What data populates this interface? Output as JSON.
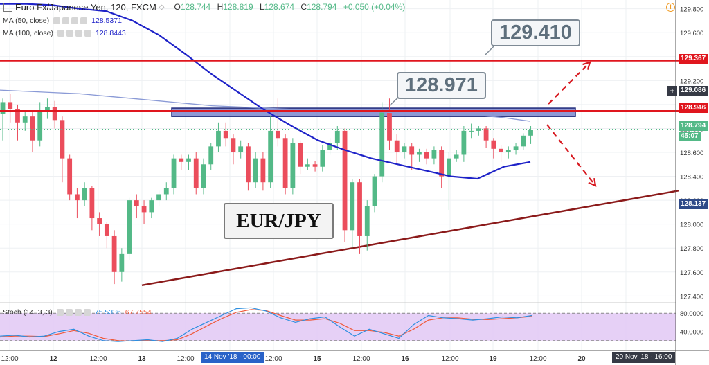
{
  "header": {
    "symbol": "Euro Fx/Japanese Yen, 120, FXCM",
    "open_label": "O",
    "open": "128.744",
    "high_label": "H",
    "high": "128.819",
    "low_label": "L",
    "low": "128.674",
    "close_label": "C",
    "close": "128.794",
    "change": "+0.050 (+0.04%)"
  },
  "indicators": {
    "ma50_label": "MA (50, close)",
    "ma50_value": "128.5371",
    "ma100_label": "MA (100, close)",
    "ma100_value": "128.8443",
    "stoch_label": "Stoch (14, 3, 3)",
    "stoch_k": "75.5336",
    "stoch_d": "67.7554"
  },
  "annotations": {
    "callout_high": "129.410",
    "callout_mid": "128.971",
    "pair": "EUR/JPY"
  },
  "price_axis": {
    "ticks": [
      "129.800",
      "129.600",
      "129.400",
      "129.200",
      "129.000",
      "128.800",
      "128.600",
      "128.400",
      "128.200",
      "128.000",
      "127.800",
      "127.600",
      "127.400"
    ],
    "tag_resist_high": "129.367",
    "tag_crosshair": "129.086",
    "tag_resist_mid": "128.946",
    "tag_last": "128.794",
    "tag_countdown": "45:07",
    "tag_trend": "128.137"
  },
  "stoch_axis": {
    "ticks": [
      "80.0000",
      "40.0000"
    ]
  },
  "time_axis": {
    "ticks": [
      "12:00",
      "12",
      "12:00",
      "13",
      "12:00",
      "12:00",
      "15",
      "12:00",
      "16",
      "12:00",
      "19",
      "12:00",
      "20"
    ],
    "tag_crosshair": "14 Nov '18 · 00:00",
    "tag_right": "20 Nov '18 · 16:00"
  },
  "colors": {
    "bull": "#53b987",
    "bear": "#eb4d5c",
    "ma50": "#1e22c8",
    "ma100": "#8a9ad6",
    "resistance": "#e0161e",
    "trendline": "#8b1a1a",
    "zone_fill": "#6a77c6",
    "stoch_k": "#2e8fe0",
    "stoch_d": "#ef5a3c",
    "stoch_band": "#e2c8f5"
  },
  "icons": [
    "collapse-icon",
    "alert-icon",
    "settings-icon",
    "close-icon",
    "eye-icon",
    "more-icon",
    "crosshair-plus-icon"
  ],
  "chart_data": {
    "type": "candlestick",
    "ylim": [
      127.35,
      129.85
    ],
    "resistance_levels": [
      129.367,
      128.946
    ],
    "supply_zone": [
      128.9,
      128.97
    ],
    "trendline": {
      "from": 127.49,
      "to": 128.28
    },
    "candles": [
      [
        128.92,
        129.02,
        128.78,
        129.05,
        128.7
      ],
      [
        129.02,
        128.96,
        128.9,
        129.09,
        128.85
      ],
      [
        128.96,
        128.85,
        128.8,
        129.0,
        128.7
      ],
      [
        128.85,
        128.9,
        128.82,
        128.95,
        128.78
      ],
      [
        128.9,
        128.7,
        128.66,
        128.95,
        128.6
      ],
      [
        128.7,
        128.95,
        128.66,
        129.02,
        128.65
      ],
      [
        128.95,
        128.98,
        128.9,
        129.05,
        128.88
      ],
      [
        128.98,
        128.87,
        128.82,
        129.03,
        128.8
      ],
      [
        128.87,
        128.55,
        128.4,
        128.9,
        128.35
      ],
      [
        128.55,
        128.25,
        128.23,
        128.58,
        128.2
      ],
      [
        128.25,
        128.2,
        128.1,
        128.3,
        128.05
      ],
      [
        128.2,
        128.3,
        128.18,
        128.35,
        128.15
      ],
      [
        128.3,
        128.05,
        128.0,
        128.32,
        127.95
      ],
      [
        128.05,
        128.0,
        127.97,
        128.1,
        127.9
      ],
      [
        128.0,
        127.9,
        127.85,
        128.02,
        127.8
      ],
      [
        127.9,
        127.6,
        127.55,
        127.95,
        127.5
      ],
      [
        127.6,
        127.75,
        127.58,
        127.8,
        127.52
      ],
      [
        127.75,
        128.2,
        127.72,
        128.22,
        127.7
      ],
      [
        128.2,
        128.15,
        128.08,
        128.25,
        128.05
      ],
      [
        128.15,
        128.1,
        128.08,
        128.2,
        128.0
      ],
      [
        128.1,
        128.2,
        128.08,
        128.22,
        128.05
      ],
      [
        128.2,
        128.25,
        128.18,
        128.28,
        128.15
      ],
      [
        128.25,
        128.3,
        128.22,
        128.35,
        128.2
      ],
      [
        128.3,
        128.55,
        128.28,
        128.58,
        128.25
      ],
      [
        128.55,
        128.52,
        128.48,
        128.58,
        128.45
      ],
      [
        128.52,
        128.55,
        128.48,
        128.58,
        128.45
      ],
      [
        128.55,
        128.3,
        128.28,
        128.6,
        128.25
      ],
      [
        128.3,
        128.5,
        128.28,
        128.55,
        128.25
      ],
      [
        128.5,
        128.65,
        128.48,
        128.68,
        128.45
      ],
      [
        128.65,
        128.78,
        128.62,
        128.85,
        128.6
      ],
      [
        128.78,
        128.72,
        128.68,
        128.85,
        128.65
      ],
      [
        128.72,
        128.6,
        128.52,
        128.75,
        128.5
      ],
      [
        128.6,
        128.65,
        128.58,
        128.7,
        128.55
      ],
      [
        128.65,
        128.35,
        128.3,
        128.68,
        128.28
      ],
      [
        128.35,
        128.55,
        128.33,
        128.6,
        128.3
      ],
      [
        128.55,
        128.35,
        128.3,
        128.6,
        128.28
      ],
      [
        128.35,
        128.78,
        128.33,
        128.9,
        128.3
      ],
      [
        128.78,
        128.72,
        128.68,
        129.05,
        128.65
      ],
      [
        128.72,
        128.3,
        128.28,
        128.75,
        128.25
      ],
      [
        128.3,
        128.68,
        128.28,
        128.72,
        128.25
      ],
      [
        128.68,
        128.48,
        128.45,
        128.7,
        128.42
      ],
      [
        128.48,
        128.5,
        128.46,
        128.55,
        128.45
      ],
      [
        128.5,
        128.48,
        128.45,
        128.53,
        128.44
      ],
      [
        128.48,
        128.62,
        128.46,
        128.66,
        128.44
      ],
      [
        128.62,
        128.68,
        128.6,
        128.72,
        128.58
      ],
      [
        128.68,
        128.78,
        128.65,
        128.82,
        128.62
      ],
      [
        128.78,
        127.95,
        127.9,
        128.8,
        127.85
      ],
      [
        127.95,
        128.35,
        127.85,
        128.38,
        127.8
      ],
      [
        128.35,
        127.9,
        127.8,
        128.38,
        127.75
      ],
      [
        127.9,
        128.15,
        127.88,
        128.2,
        127.78
      ],
      [
        128.15,
        128.4,
        128.12,
        128.42,
        128.1
      ],
      [
        128.4,
        128.95,
        128.38,
        129.02,
        128.35
      ],
      [
        128.95,
        128.7,
        128.65,
        129.05,
        128.62
      ],
      [
        128.7,
        128.6,
        128.55,
        128.75,
        128.5
      ],
      [
        128.6,
        128.65,
        128.58,
        128.68,
        128.55
      ],
      [
        128.65,
        128.58,
        128.5,
        128.68,
        128.45
      ],
      [
        128.58,
        128.6,
        128.54,
        128.63,
        128.52
      ],
      [
        128.6,
        128.55,
        128.52,
        128.63,
        128.5
      ],
      [
        128.55,
        128.62,
        128.52,
        128.65,
        128.5
      ],
      [
        128.62,
        128.4,
        128.35,
        128.65,
        128.3
      ],
      [
        128.4,
        128.55,
        128.38,
        128.6,
        128.12
      ],
      [
        128.55,
        128.58,
        128.53,
        128.62,
        128.52
      ],
      [
        128.58,
        128.78,
        128.55,
        128.82,
        128.52
      ],
      [
        128.78,
        128.78,
        128.74,
        128.84,
        128.72
      ],
      [
        128.78,
        128.8,
        128.76,
        128.82,
        128.74
      ],
      [
        128.8,
        128.7,
        128.66,
        128.82,
        128.64
      ],
      [
        128.7,
        128.63,
        128.58,
        128.72,
        128.55
      ],
      [
        128.63,
        128.6,
        128.56,
        128.66,
        128.52
      ],
      [
        128.6,
        128.62,
        128.58,
        128.65,
        128.55
      ],
      [
        128.62,
        128.65,
        128.6,
        128.68,
        128.58
      ],
      [
        128.65,
        128.74,
        128.63,
        128.76,
        128.62
      ],
      [
        128.74,
        128.79,
        128.73,
        128.82,
        128.67
      ]
    ],
    "candle_fields": [
      "open",
      "close",
      "body_low_hint",
      "high",
      "low"
    ],
    "ma50": [
      129.84,
      129.84,
      129.83,
      129.8,
      129.78,
      129.7,
      129.58,
      129.42,
      129.25,
      129.1,
      128.95,
      128.82,
      128.7,
      128.62,
      128.55,
      128.5,
      128.45,
      128.4,
      128.38,
      128.48,
      128.52
    ],
    "ma100": [
      129.12,
      129.11,
      129.1,
      129.09,
      129.07,
      129.05,
      129.03,
      129.01,
      128.99,
      128.98,
      128.97,
      128.96,
      128.95,
      128.95,
      128.94,
      128.93,
      128.93,
      128.92,
      128.91,
      128.89,
      128.86
    ],
    "stoch": {
      "ylim": [
        0,
        100
      ],
      "k": [
        30,
        32,
        28,
        30,
        40,
        45,
        30,
        20,
        18,
        20,
        22,
        18,
        25,
        45,
        60,
        75,
        90,
        92,
        85,
        70,
        60,
        68,
        72,
        50,
        30,
        45,
        35,
        25,
        55,
        75,
        70,
        68,
        65,
        68,
        72,
        70,
        75
      ],
      "d": [
        28,
        30,
        30,
        29,
        35,
        42,
        36,
        25,
        20,
        19,
        20,
        20,
        22,
        35,
        52,
        68,
        82,
        88,
        86,
        75,
        65,
        65,
        68,
        58,
        42,
        42,
        38,
        30,
        45,
        65,
        70,
        70,
        67,
        66,
        68,
        70,
        73
      ]
    }
  }
}
